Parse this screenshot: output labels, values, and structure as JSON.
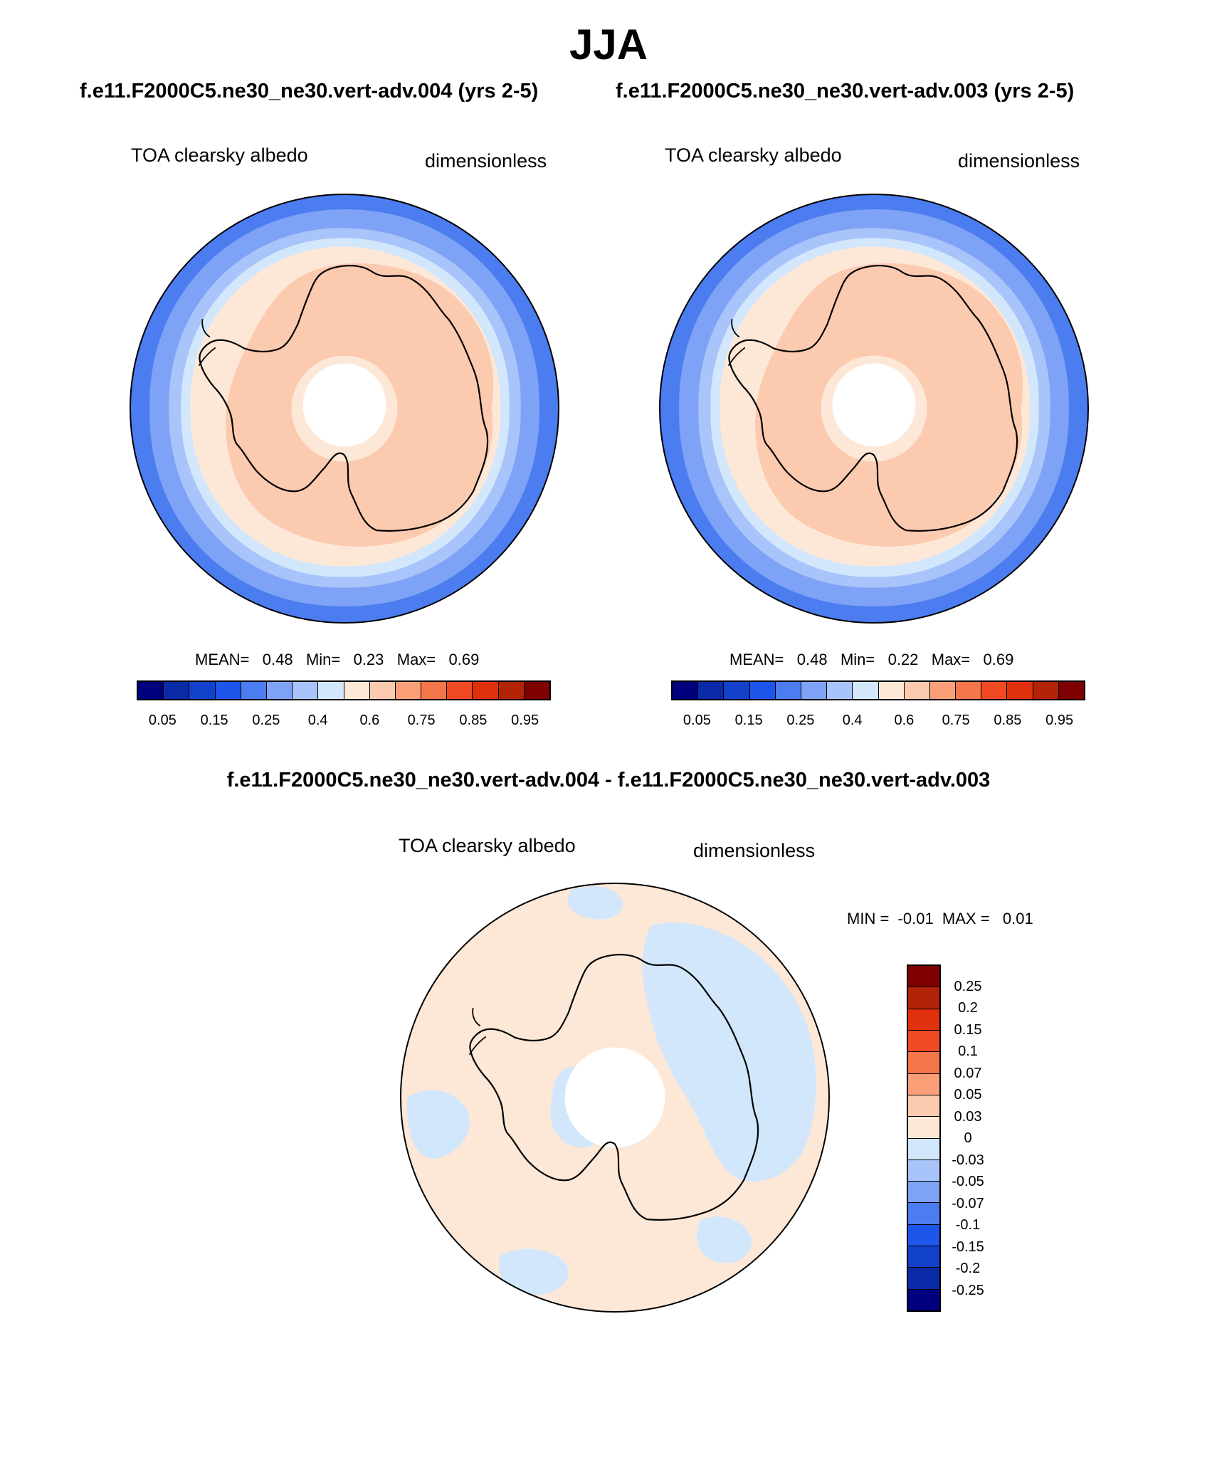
{
  "figure": {
    "season": "JJA",
    "case_a_title": "f.e11.F2000C5.ne30_ne30.vert-adv.004 (yrs 2-5)",
    "case_b_title": "f.e11.F2000C5.ne30_ne30.vert-adv.003 (yrs 2-5)",
    "diff_title": "f.e11.F2000C5.ne30_ne30.vert-adv.004 - f.e11.F2000C5.ne30_ne30.vert-adv.003"
  },
  "panels": [
    {
      "id": "case-a",
      "variable": "TOA clearsky albedo",
      "units": "dimensionless",
      "stats": {
        "mean_label": "MEAN=",
        "mean": "0.48",
        "min_label": "Min=",
        "min": "0.23",
        "max_label": "Max=",
        "max": "0.69"
      }
    },
    {
      "id": "case-b",
      "variable": "TOA clearsky albedo",
      "units": "dimensionless",
      "stats": {
        "mean_label": "MEAN=",
        "mean": "0.48",
        "min_label": "Min=",
        "min": "0.22",
        "max_label": "Max=",
        "max": "0.69"
      }
    },
    {
      "id": "difference",
      "variable": "TOA clearsky albedo",
      "units": "dimensionless",
      "stats": {
        "min_label": "MIN =",
        "min": "-0.01",
        "max_label": "MAX =",
        "max": "0.01"
      }
    }
  ],
  "chart_data": [
    {
      "type": "map",
      "projection": "south-polar-stereographic",
      "panel": "case-a",
      "colorbar": {
        "orientation": "horizontal",
        "colors": [
          "#00007f",
          "#0a2aa8",
          "#1241cc",
          "#1e55ea",
          "#4b7cf0",
          "#7ea2f5",
          "#a8c4fa",
          "#d2e6fc",
          "#fde8d8",
          "#fccaaf",
          "#fa9f78",
          "#f5764a",
          "#f04a23",
          "#e0300e",
          "#b32307",
          "#7f0000"
        ],
        "tick_labels": [
          "0.05",
          "0.15",
          "0.25",
          "0.4",
          "0.6",
          "0.75",
          "0.85",
          "0.95"
        ]
      }
    },
    {
      "type": "map",
      "projection": "south-polar-stereographic",
      "panel": "case-b",
      "colorbar": {
        "orientation": "horizontal",
        "colors": [
          "#00007f",
          "#0a2aa8",
          "#1241cc",
          "#1e55ea",
          "#4b7cf0",
          "#7ea2f5",
          "#a8c4fa",
          "#d2e6fc",
          "#fde8d8",
          "#fccaaf",
          "#fa9f78",
          "#f5764a",
          "#f04a23",
          "#e0300e",
          "#b32307",
          "#7f0000"
        ],
        "tick_labels": [
          "0.05",
          "0.15",
          "0.25",
          "0.4",
          "0.6",
          "0.75",
          "0.85",
          "0.95"
        ]
      }
    },
    {
      "type": "map",
      "projection": "south-polar-stereographic",
      "panel": "difference",
      "colorbar": {
        "orientation": "vertical",
        "colors": [
          "#7f0000",
          "#b32307",
          "#e0300e",
          "#f04a23",
          "#f5764a",
          "#fa9f78",
          "#fccaaf",
          "#fde8d8",
          "#d2e6fc",
          "#a8c4fa",
          "#7ea2f5",
          "#4b7cf0",
          "#1e55ea",
          "#1241cc",
          "#0a2aa8",
          "#00007f"
        ],
        "tick_labels": [
          "0.25",
          "0.2",
          "0.15",
          "0.1",
          "0.07",
          "0.05",
          "0.03",
          "0",
          "-0.03",
          "-0.05",
          "-0.07",
          "-0.1",
          "-0.15",
          "-0.2",
          "-0.25"
        ]
      }
    }
  ],
  "fill_colors": {
    "ocean_outer": "#4b7cf0",
    "ocean_mid": "#7ea2f5",
    "ocean_inner": "#a8c4fa",
    "ice_edge": "#d2e6fc",
    "sea_ice": "#fde8d8",
    "land": "#fccaaf",
    "pole_hole": "#ffffff",
    "diff_positive": "#fde8d8",
    "diff_negative": "#d2e6fc"
  }
}
